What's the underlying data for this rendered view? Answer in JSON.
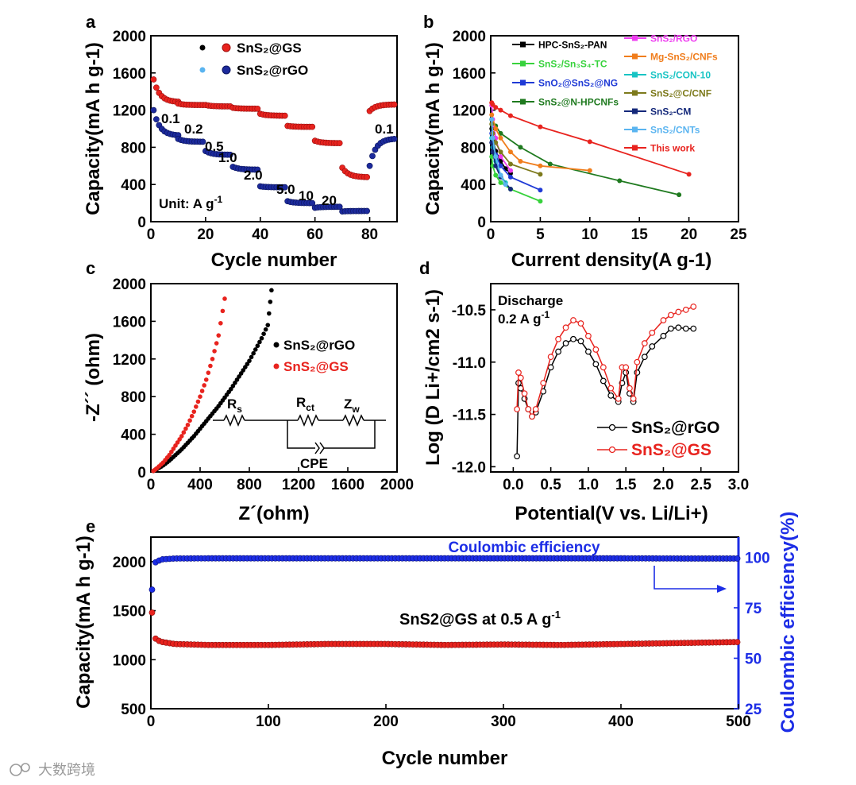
{
  "chart_data": [
    {
      "id": "a",
      "panel_label": "a",
      "type": "scatter",
      "xlabel": "Cycle number",
      "ylabel": "Capacity(mA h g-1)",
      "xlim": [
        0,
        90
      ],
      "ylim": [
        0,
        2000
      ],
      "xticks": [
        "0",
        "20",
        "40",
        "60",
        "80"
      ],
      "yticks": [
        "0",
        "400",
        "800",
        "1200",
        "1600",
        "2000"
      ],
      "unit_note": "Unit: A g",
      "unit_sup": "-1",
      "rate_labels": [
        "0.1",
        "0.2",
        "0.5",
        "1.0",
        "2.0",
        "5.0",
        "10",
        "20",
        "0.1"
      ],
      "series": [
        {
          "name": "SnS2@GS",
          "color": "#e8231e",
          "legend_dot": "#000000",
          "segments": [
            [
              1,
              1530,
              1290
            ],
            [
              10,
              1270,
              1255
            ],
            [
              20,
              1255,
              1240
            ],
            [
              30,
              1225,
              1215
            ],
            [
              40,
              1160,
              1140
            ],
            [
              50,
              1030,
              1020
            ],
            [
              60,
              870,
              845
            ],
            [
              70,
              580,
              480
            ],
            [
              80,
              1190,
              1260
            ]
          ]
        },
        {
          "name": "SnS2@rGO",
          "color": "#1c2a9c",
          "legend_dot": "#5ab4f0",
          "segments": [
            [
              1,
              1200,
              930
            ],
            [
              10,
              890,
              860
            ],
            [
              20,
              760,
              720
            ],
            [
              30,
              590,
              560
            ],
            [
              40,
              380,
              370
            ],
            [
              50,
              220,
              200
            ],
            [
              60,
              150,
              160
            ],
            [
              70,
              110,
              115
            ],
            [
              80,
              600,
              890
            ]
          ]
        }
      ]
    },
    {
      "id": "b",
      "panel_label": "b",
      "type": "line",
      "xlabel": "Current density(A g-1)",
      "ylabel": "Capacity(mA h g-1)",
      "xlim": [
        0,
        25
      ],
      "ylim": [
        0,
        2000
      ],
      "xticks": [
        "0",
        "5",
        "10",
        "15",
        "20",
        "25"
      ],
      "yticks": [
        "0",
        "400",
        "800",
        "1200",
        "1600",
        "2000"
      ],
      "series": [
        {
          "name": "HPC-SnS2-PAN",
          "color": "#000000",
          "x": [
            0.1,
            0.2,
            0.5,
            1,
            1.5,
            2
          ],
          "y": [
            1000,
            880,
            760,
            650,
            570,
            520
          ]
        },
        {
          "name": "SnS2/Sn3S4-TC",
          "color": "#37d23c",
          "x": [
            0.1,
            0.2,
            0.5,
            1,
            2,
            5
          ],
          "y": [
            700,
            600,
            500,
            420,
            350,
            220
          ]
        },
        {
          "name": "SnO2@SnS2@NG",
          "color": "#1f3ad6",
          "x": [
            0.1,
            0.2,
            0.5,
            1,
            2,
            5
          ],
          "y": [
            950,
            850,
            720,
            600,
            480,
            340
          ]
        },
        {
          "name": "SnS2@N-HPCNFs",
          "color": "#1f7a1f",
          "x": [
            0.1,
            0.5,
            1,
            3,
            6,
            13,
            19
          ],
          "y": [
            1100,
            1030,
            950,
            800,
            620,
            440,
            290
          ]
        },
        {
          "name": "SnS2/RGO",
          "color": "#ee3cf0",
          "x": [
            0.1,
            0.2,
            0.5,
            1,
            2
          ],
          "y": [
            1250,
            1100,
            900,
            700,
            550
          ]
        },
        {
          "name": "Mg-SnS2/CNFs",
          "color": "#f07d1c",
          "x": [
            0.1,
            0.5,
            1,
            2,
            3,
            5,
            10
          ],
          "y": [
            1150,
            1000,
            900,
            750,
            650,
            600,
            550
          ]
        },
        {
          "name": "SnS2/CON-10",
          "color": "#18c4c4",
          "x": [
            0.1,
            0.2,
            0.5,
            1,
            1.5
          ],
          "y": [
            900,
            800,
            650,
            500,
            420
          ]
        },
        {
          "name": "SnS2@C/CNF",
          "color": "#7d7a1c",
          "x": [
            0.1,
            0.2,
            0.5,
            1,
            2,
            5
          ],
          "y": [
            1050,
            950,
            850,
            750,
            620,
            510
          ]
        },
        {
          "name": "SnS2-CM",
          "color": "#14287a",
          "x": [
            0.1,
            0.2,
            0.5,
            1,
            2
          ],
          "y": [
            850,
            750,
            600,
            480,
            350
          ]
        },
        {
          "name": "SnS2/CNTs",
          "color": "#5ab4f0",
          "x": [
            0.1,
            0.2,
            0.5,
            1,
            1.5
          ],
          "y": [
            1100,
            900,
            700,
            500,
            400
          ]
        },
        {
          "name": "This work",
          "color": "#e8231e",
          "x": [
            0.1,
            0.2,
            0.5,
            1,
            2,
            5,
            10,
            20
          ],
          "y": [
            1280,
            1260,
            1230,
            1200,
            1140,
            1020,
            860,
            510
          ]
        }
      ]
    },
    {
      "id": "c",
      "panel_label": "c",
      "type": "scatter",
      "xlabel": "Z´(ohm)",
      "ylabel": "-Z´´ (ohm)",
      "xlim": [
        0,
        2000
      ],
      "ylim": [
        0,
        2000
      ],
      "xticks": [
        "0",
        "400",
        "800",
        "1200",
        "1600",
        "2000"
      ],
      "yticks": [
        "0",
        "400",
        "800",
        "1200",
        "1600",
        "2000"
      ],
      "circuit_labels": {
        "rs": "R",
        "rs_sub": "s",
        "rct": "R",
        "rct_sub": "ct",
        "zw": "Z",
        "zw_sub": "w",
        "cpe": "CPE"
      },
      "series": [
        {
          "name": "SnS2@rGO",
          "color": "#000000",
          "x": [
            20,
            50,
            100,
            150,
            200,
            250,
            300,
            350,
            400,
            450,
            500,
            550,
            600,
            650,
            700,
            750,
            800,
            850,
            900,
            950,
            980
          ],
          "y": [
            10,
            30,
            70,
            120,
            180,
            240,
            310,
            380,
            460,
            540,
            620,
            700,
            790,
            880,
            980,
            1080,
            1180,
            1300,
            1420,
            1560,
            1930
          ]
        },
        {
          "name": "SnS2@GS",
          "color": "#e8231e",
          "x": [
            20,
            50,
            100,
            150,
            200,
            250,
            300,
            350,
            400,
            450,
            500,
            550,
            600
          ],
          "y": [
            10,
            40,
            100,
            180,
            280,
            380,
            500,
            640,
            800,
            980,
            1200,
            1450,
            1840
          ]
        }
      ]
    },
    {
      "id": "d",
      "panel_label": "d",
      "type": "line",
      "xlabel": "Potential(V vs. Li/Li+)",
      "ylabel": "Log (D Li+/cm2 s-1)",
      "xlim": [
        -0.3,
        3.0
      ],
      "ylim": [
        -12.05,
        -10.25
      ],
      "xticks": [
        "0.0",
        "0.5",
        "1.0",
        "1.5",
        "2.0",
        "2.5",
        "3.0"
      ],
      "yticks": [
        "-12.0",
        "-11.5",
        "-11.0",
        "-10.5"
      ],
      "note": [
        "Discharge",
        "0.2 A g"
      ],
      "note_sup": "-1",
      "series": [
        {
          "name": "SnS2@rGO",
          "color": "#000000",
          "x": [
            0.05,
            0.07,
            0.1,
            0.15,
            0.2,
            0.25,
            0.3,
            0.4,
            0.5,
            0.6,
            0.7,
            0.8,
            0.9,
            1.0,
            1.1,
            1.2,
            1.3,
            1.4,
            1.45,
            1.5,
            1.55,
            1.6,
            1.65,
            1.75,
            1.85,
            2.0,
            2.1,
            2.2,
            2.3,
            2.4
          ],
          "y": [
            -11.9,
            -11.2,
            -11.25,
            -11.35,
            -11.45,
            -11.52,
            -11.48,
            -11.28,
            -11.05,
            -10.9,
            -10.82,
            -10.78,
            -10.8,
            -10.9,
            -11.02,
            -11.18,
            -11.32,
            -11.38,
            -11.2,
            -11.1,
            -11.3,
            -11.38,
            -11.1,
            -10.95,
            -10.85,
            -10.75,
            -10.68,
            -10.67,
            -10.68,
            -10.68
          ]
        },
        {
          "name": "SnS2@GS",
          "color": "#e8231e",
          "x": [
            0.05,
            0.07,
            0.1,
            0.15,
            0.2,
            0.25,
            0.3,
            0.4,
            0.5,
            0.6,
            0.7,
            0.8,
            0.9,
            1.0,
            1.1,
            1.2,
            1.3,
            1.4,
            1.45,
            1.5,
            1.55,
            1.6,
            1.65,
            1.75,
            1.85,
            2.0,
            2.1,
            2.2,
            2.3,
            2.4
          ],
          "y": [
            -11.45,
            -11.1,
            -11.15,
            -11.3,
            -11.45,
            -11.52,
            -11.45,
            -11.2,
            -10.95,
            -10.78,
            -10.67,
            -10.6,
            -10.63,
            -10.75,
            -10.88,
            -11.05,
            -11.25,
            -11.35,
            -11.05,
            -11.05,
            -11.25,
            -11.35,
            -11.0,
            -10.82,
            -10.72,
            -10.6,
            -10.55,
            -10.52,
            -10.5,
            -10.47
          ]
        }
      ]
    },
    {
      "id": "e",
      "panel_label": "e",
      "type": "scatter",
      "title": "Coulombic efficiency",
      "annotation": "SnS2@GS at 0.5 A g",
      "annotation_sup": "-1",
      "xlabel": "Cycle number",
      "ylabel": "Capacity(mA h g-1)",
      "y2label": "Coulombic efficiency(%)",
      "xlim": [
        0,
        500
      ],
      "ylim": [
        500,
        2250
      ],
      "y2lim": [
        25,
        110
      ],
      "xticks": [
        "0",
        "100",
        "200",
        "300",
        "400",
        "500"
      ],
      "yticks": [
        "500",
        "1000",
        "1500",
        "2000"
      ],
      "y2ticks": [
        "25",
        "50",
        "75",
        "100"
      ],
      "series": [
        {
          "name": "Capacity",
          "color": "#e8231e",
          "x": [
            1,
            2,
            3,
            5,
            10,
            20,
            50,
            100,
            150,
            200,
            250,
            300,
            350,
            400,
            450,
            500
          ],
          "y": [
            1480,
            1300,
            1230,
            1200,
            1180,
            1160,
            1150,
            1150,
            1160,
            1160,
            1150,
            1155,
            1150,
            1160,
            1170,
            1180
          ]
        },
        {
          "name": "Coulombic efficiency",
          "color": "#1c2de6",
          "axis": "right",
          "x": [
            1,
            2,
            3,
            5,
            10,
            20,
            50,
            100,
            150,
            200,
            250,
            300,
            350,
            400,
            450,
            500
          ],
          "y": [
            84,
            95,
            97,
            98,
            99,
            99.4,
            99.5,
            99.5,
            99.5,
            99.5,
            99.5,
            99.5,
            99.5,
            99.5,
            99.4,
            99.4
          ]
        }
      ]
    }
  ],
  "legends": {
    "a": [
      "SnS₂@GS",
      "SnS₂@rGO"
    ],
    "b_left": [
      "HPC-SnS₂-PAN",
      "SnS₂/Sn₃S₄-TC",
      "SnO₂@SnS₂@NG",
      "SnS₂@N-HPCNFs"
    ],
    "b_right": [
      "SnS₂/RGO",
      "Mg-SnS₂/CNFs",
      "SnS₂/CON-10",
      "SnS₂@C/CNF",
      "SnS₂-CM",
      "SnS₂/CNTs",
      "This work"
    ],
    "c": [
      "SnS₂@rGO",
      "SnS₂@GS"
    ],
    "d": [
      "SnS₂@rGO",
      "SnS₂@GS"
    ]
  },
  "watermark": "大数跨境"
}
